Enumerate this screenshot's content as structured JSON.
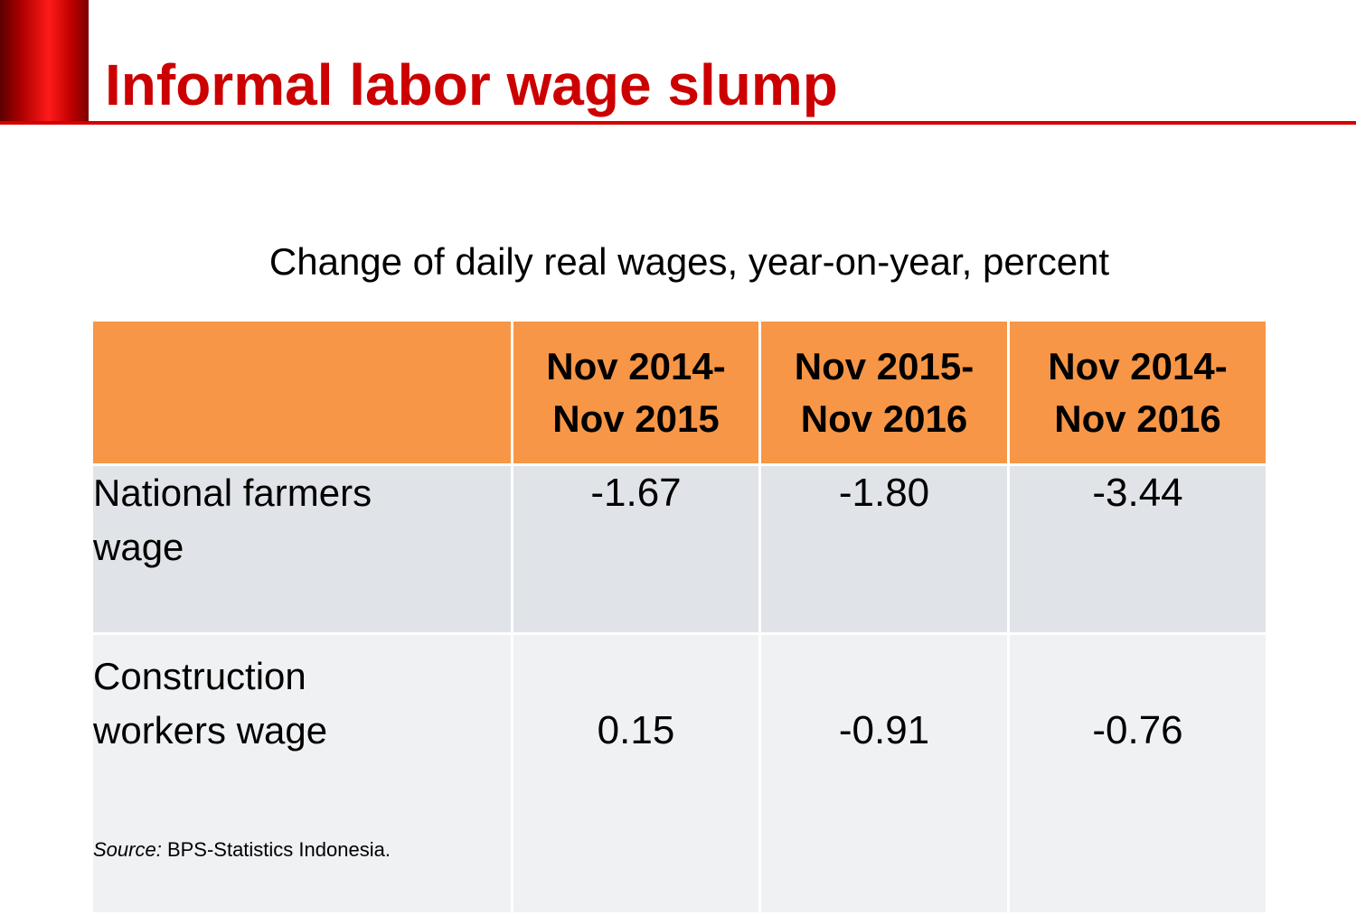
{
  "slide": {
    "title": "Informal labor wage slump",
    "accent_color": "#cc0000"
  },
  "table": {
    "caption": "Change of daily real wages, year-on-year, percent",
    "header_color": "#f79646",
    "columns": [
      {
        "line1": "Nov 2014-",
        "line2": "Nov 2015"
      },
      {
        "line1": "Nov 2015-",
        "line2": "Nov 2016"
      },
      {
        "line1": "Nov 2014-",
        "line2": "Nov 2016"
      }
    ],
    "rows": [
      {
        "line1": "National farmers",
        "line2": "wage",
        "values": [
          "-1.67",
          "-1.80",
          "-3.44"
        ]
      },
      {
        "line1": "Construction",
        "line2": "workers wage",
        "values": [
          "0.15",
          "-0.91",
          "-0.76"
        ]
      }
    ]
  },
  "source": {
    "label": "Source:",
    "text": " BPS-Statistics Indonesia."
  }
}
